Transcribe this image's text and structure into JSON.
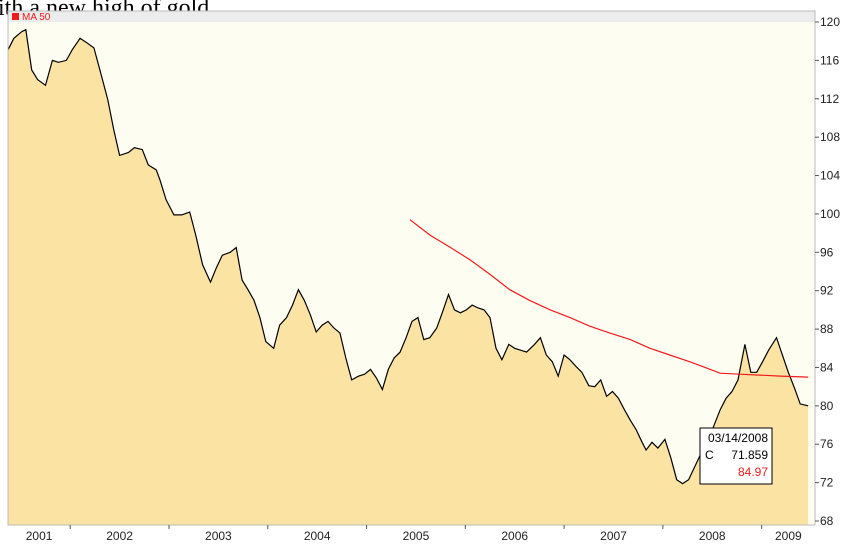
{
  "caption": "ith a new high of gold.",
  "chart_data": {
    "type": "area",
    "legend": "MA 50",
    "series": [
      {
        "name": "C",
        "color": "#000000",
        "fill": "#fbe3a3",
        "x": [
          2001.37,
          2001.43,
          2001.51,
          2001.55,
          2001.61,
          2001.67,
          2001.75,
          2001.82,
          2001.88,
          2001.96,
          2002.02,
          2002.1,
          2002.16,
          2002.24,
          2002.3,
          2002.38,
          2002.44,
          2002.5,
          2002.59,
          2002.65,
          2002.73,
          2002.79,
          2002.87,
          2002.91,
          2002.97,
          2003.05,
          2003.13,
          2003.21,
          2003.27,
          2003.34,
          2003.42,
          2003.48,
          2003.54,
          2003.62,
          2003.68,
          2003.74,
          2003.8,
          2003.86,
          2003.92,
          2003.98,
          2004.06,
          2004.12,
          2004.19,
          2004.25,
          2004.31,
          2004.37,
          2004.43,
          2004.49,
          2004.55,
          2004.61,
          2004.67,
          2004.73,
          2004.79,
          2004.85,
          2004.92,
          2004.98,
          2005.04,
          2005.1,
          2005.16,
          2005.22,
          2005.28,
          2005.34,
          2005.4,
          2005.46,
          2005.52,
          2005.58,
          2005.64,
          2005.71,
          2005.77,
          2005.83,
          2005.89,
          2005.95,
          2006.01,
          2006.07,
          2006.13,
          2006.19,
          2006.25,
          2006.31,
          2006.37,
          2006.44,
          2006.5,
          2006.56,
          2006.62,
          2006.7,
          2006.76,
          2006.82,
          2006.88,
          2006.94,
          2007.0,
          2007.06,
          2007.12,
          2007.18,
          2007.25,
          2007.31,
          2007.37,
          2007.43,
          2007.49,
          2007.55,
          2007.61,
          2007.67,
          2007.73,
          2007.79,
          2007.83,
          2007.89,
          2007.95,
          2008.02,
          2008.08,
          2008.14,
          2008.2,
          2008.26,
          2008.38,
          2008.5,
          2008.58,
          2008.64,
          2008.7,
          2008.76,
          2008.83,
          2008.89,
          2008.95,
          2009.01,
          2009.07,
          2009.15,
          2009.21,
          2009.27,
          2009.33,
          2009.39,
          2009.47
        ],
        "values": [
          117.1,
          118.3,
          119.0,
          119.2,
          115.0,
          114.0,
          113.4,
          116.0,
          115.8,
          116.0,
          117.1,
          118.3,
          117.9,
          117.3,
          115.0,
          111.9,
          108.8,
          106.1,
          106.4,
          106.9,
          106.7,
          105.1,
          104.6,
          103.5,
          101.5,
          99.9,
          99.9,
          100.2,
          97.8,
          94.7,
          92.9,
          94.4,
          95.7,
          96.0,
          96.5,
          93.1,
          92.1,
          91.0,
          89.2,
          86.7,
          86.0,
          88.4,
          89.2,
          90.5,
          92.1,
          91.0,
          89.5,
          87.7,
          88.4,
          88.8,
          88.1,
          87.6,
          85.0,
          82.7,
          83.1,
          83.3,
          83.8,
          82.9,
          81.7,
          83.8,
          85.0,
          85.6,
          87.1,
          88.8,
          89.2,
          86.9,
          87.1,
          88.1,
          89.8,
          91.6,
          90.0,
          89.7,
          90.0,
          90.5,
          90.2,
          90.0,
          89.2,
          86.0,
          84.8,
          86.4,
          86.0,
          85.8,
          85.6,
          86.4,
          87.1,
          85.3,
          84.6,
          83.1,
          85.3,
          84.8,
          84.1,
          83.5,
          82.1,
          82.0,
          82.7,
          81.0,
          81.5,
          80.8,
          79.6,
          78.5,
          77.5,
          76.2,
          75.4,
          76.2,
          75.6,
          76.5,
          74.6,
          72.3,
          71.9,
          72.3,
          74.9,
          77.5,
          79.6,
          80.8,
          81.5,
          82.7,
          86.4,
          83.5,
          83.5,
          84.6,
          85.8,
          87.1,
          85.3,
          83.5,
          81.9,
          80.2,
          80.0
        ]
      },
      {
        "name": "MA 50",
        "color": "#ee1c1c",
        "x": [
          2005.44,
          2005.64,
          2005.85,
          2006.05,
          2006.25,
          2006.45,
          2006.65,
          2006.86,
          2007.06,
          2007.26,
          2007.46,
          2007.67,
          2007.87,
          2008.07,
          2008.27,
          2008.48,
          2008.58,
          2008.78,
          2008.98,
          2009.19,
          2009.47
        ],
        "values": [
          99.4,
          97.8,
          96.5,
          95.2,
          93.7,
          92.1,
          91.0,
          90.0,
          89.2,
          88.3,
          87.6,
          86.9,
          86.0,
          85.3,
          84.6,
          83.8,
          83.4,
          83.3,
          83.2,
          83.1,
          83.0
        ]
      }
    ],
    "xlim": [
      2001.37,
      2009.54
    ],
    "xticks": [
      2001,
      2002,
      2003,
      2004,
      2005,
      2006,
      2007,
      2008,
      2009
    ],
    "ylim": [
      68,
      120
    ],
    "yticks": [
      68,
      72,
      76,
      80,
      84,
      88,
      92,
      96,
      100,
      104,
      108,
      112,
      116,
      120
    ],
    "tooltip": {
      "date": "03/14/2008",
      "label": "C",
      "close": "71.859",
      "ma": "84.97"
    }
  }
}
